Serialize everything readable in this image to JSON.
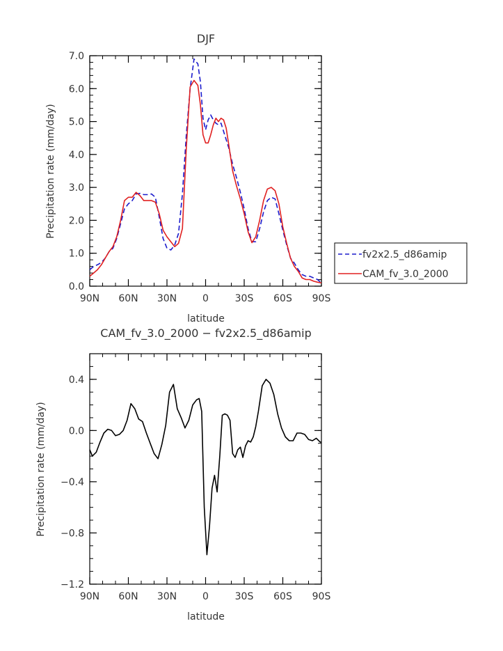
{
  "chart_data": [
    {
      "type": "line",
      "title": "DJF",
      "xlabel": "latitude",
      "ylabel": "Precipitation rate (mm/day)",
      "xlim": [
        -90,
        90
      ],
      "ylim": [
        0,
        7
      ],
      "x_ticks": [
        -90,
        -60,
        -30,
        0,
        30,
        60,
        90
      ],
      "x_tick_labels": [
        "90N",
        "60N",
        "30N",
        "0",
        "30S",
        "60S",
        "90S"
      ],
      "y_ticks": [
        0,
        1,
        2,
        3,
        4,
        5,
        6,
        7
      ],
      "y_tick_labels": [
        "0.0",
        "1.0",
        "2.0",
        "3.0",
        "4.0",
        "5.0",
        "6.0",
        "7.0"
      ],
      "legend_position": "right",
      "series": [
        {
          "name": "fv2x2.5_d86amip",
          "color": "#1a1acc",
          "dash": "dashed",
          "x": [
            -90,
            -87,
            -84,
            -81,
            -78,
            -75,
            -72,
            -69,
            -66,
            -63,
            -60,
            -57,
            -54,
            -51,
            -48,
            -45,
            -42,
            -39,
            -36,
            -33,
            -30,
            -27,
            -24,
            -21,
            -18,
            -15,
            -12,
            -9,
            -6,
            -4,
            -2,
            0,
            2,
            4,
            6,
            8,
            10,
            12,
            14,
            16,
            18,
            21,
            24,
            27,
            30,
            33,
            36,
            39,
            42,
            45,
            48,
            51,
            54,
            57,
            60,
            63,
            66,
            69,
            72,
            75,
            78,
            81,
            84,
            87,
            90
          ],
          "y": [
            0.5,
            0.6,
            0.65,
            0.72,
            0.85,
            1.05,
            1.15,
            1.45,
            1.9,
            2.35,
            2.5,
            2.6,
            2.8,
            2.82,
            2.78,
            2.78,
            2.8,
            2.7,
            2.1,
            1.45,
            1.15,
            1.1,
            1.25,
            1.6,
            2.8,
            4.6,
            6.0,
            6.9,
            6.75,
            6.2,
            5.1,
            4.75,
            5.05,
            5.2,
            5.05,
            4.95,
            4.9,
            4.95,
            4.7,
            4.45,
            4.2,
            3.7,
            3.3,
            2.85,
            2.35,
            1.75,
            1.35,
            1.35,
            1.75,
            2.25,
            2.6,
            2.7,
            2.65,
            2.2,
            1.7,
            1.25,
            0.85,
            0.7,
            0.5,
            0.35,
            0.3,
            0.3,
            0.25,
            0.2,
            0.1
          ]
        },
        {
          "name": "CAM_fv_3.0_2000",
          "color": "#e02020",
          "dash": "solid",
          "x": [
            -90,
            -87,
            -84,
            -81,
            -78,
            -75,
            -72,
            -69,
            -66,
            -63,
            -60,
            -57,
            -54,
            -51,
            -48,
            -45,
            -42,
            -39,
            -36,
            -33,
            -30,
            -27,
            -24,
            -21,
            -18,
            -15,
            -12,
            -9,
            -6,
            -4,
            -2,
            0,
            2,
            4,
            6,
            8,
            10,
            12,
            14,
            16,
            18,
            21,
            24,
            27,
            30,
            33,
            36,
            39,
            42,
            45,
            48,
            51,
            54,
            57,
            60,
            63,
            66,
            69,
            72,
            75,
            78,
            81,
            84,
            87,
            90
          ],
          "y": [
            0.3,
            0.4,
            0.5,
            0.65,
            0.85,
            1.05,
            1.2,
            1.5,
            2.0,
            2.6,
            2.7,
            2.7,
            2.85,
            2.75,
            2.6,
            2.6,
            2.6,
            2.55,
            2.2,
            1.7,
            1.5,
            1.35,
            1.2,
            1.3,
            1.75,
            4.2,
            6.05,
            6.25,
            6.1,
            5.5,
            4.6,
            4.35,
            4.35,
            4.6,
            4.9,
            5.1,
            5.0,
            5.1,
            5.05,
            4.8,
            4.3,
            3.5,
            3.05,
            2.65,
            2.2,
            1.65,
            1.32,
            1.5,
            2.0,
            2.6,
            2.95,
            3.0,
            2.9,
            2.5,
            1.8,
            1.3,
            0.85,
            0.6,
            0.45,
            0.25,
            0.2,
            0.2,
            0.15,
            0.12,
            0.1
          ]
        }
      ]
    },
    {
      "type": "line",
      "title": "CAM_fv_3.0_2000 − fv2x2.5_d86amip",
      "xlabel": "latitude",
      "ylabel": "Precipitation rate (mm/day)",
      "xlim": [
        -90,
        90
      ],
      "ylim": [
        -1.2,
        0.6
      ],
      "x_ticks": [
        -90,
        -60,
        -30,
        0,
        30,
        60,
        90
      ],
      "x_tick_labels": [
        "90N",
        "60N",
        "30N",
        "0",
        "30S",
        "60S",
        "90S"
      ],
      "y_ticks": [
        -1.2,
        -0.8,
        -0.4,
        0.0,
        0.4
      ],
      "y_tick_labels": [
        "−1.2",
        "−0.8",
        "−0.4",
        "0.0",
        "0.4"
      ],
      "series": [
        {
          "color": "#000000",
          "dash": "solid",
          "x": [
            -90,
            -88,
            -85,
            -82,
            -79,
            -76,
            -73,
            -70,
            -67,
            -64,
            -61,
            -58,
            -55,
            -52,
            -49,
            -46,
            -43,
            -40,
            -37,
            -34,
            -31,
            -28,
            -25,
            -22,
            -19,
            -16,
            -13,
            -10,
            -7,
            -5,
            -3,
            -1,
            1,
            3,
            5,
            7,
            9,
            11,
            13,
            15,
            17,
            19,
            21,
            23,
            25,
            27,
            29,
            31,
            33,
            35,
            37,
            39,
            41,
            44,
            47,
            50,
            53,
            56,
            59,
            62,
            65,
            68,
            71,
            74,
            77,
            80,
            83,
            86,
            89,
            90
          ],
          "y": [
            -0.15,
            -0.2,
            -0.17,
            -0.09,
            -0.02,
            0.01,
            0.0,
            -0.04,
            -0.03,
            0.0,
            0.08,
            0.21,
            0.17,
            0.09,
            0.07,
            -0.02,
            -0.1,
            -0.18,
            -0.22,
            -0.11,
            0.04,
            0.3,
            0.36,
            0.17,
            0.1,
            0.02,
            0.08,
            0.2,
            0.24,
            0.25,
            0.15,
            -0.6,
            -0.97,
            -0.75,
            -0.45,
            -0.35,
            -0.48,
            -0.2,
            0.12,
            0.13,
            0.12,
            0.08,
            -0.18,
            -0.21,
            -0.15,
            -0.13,
            -0.21,
            -0.12,
            -0.08,
            -0.09,
            -0.05,
            0.03,
            0.15,
            0.35,
            0.4,
            0.37,
            0.28,
            0.13,
            0.02,
            -0.05,
            -0.08,
            -0.08,
            -0.02,
            -0.02,
            -0.03,
            -0.07,
            -0.08,
            -0.06,
            -0.09,
            -0.09
          ]
        }
      ]
    }
  ]
}
